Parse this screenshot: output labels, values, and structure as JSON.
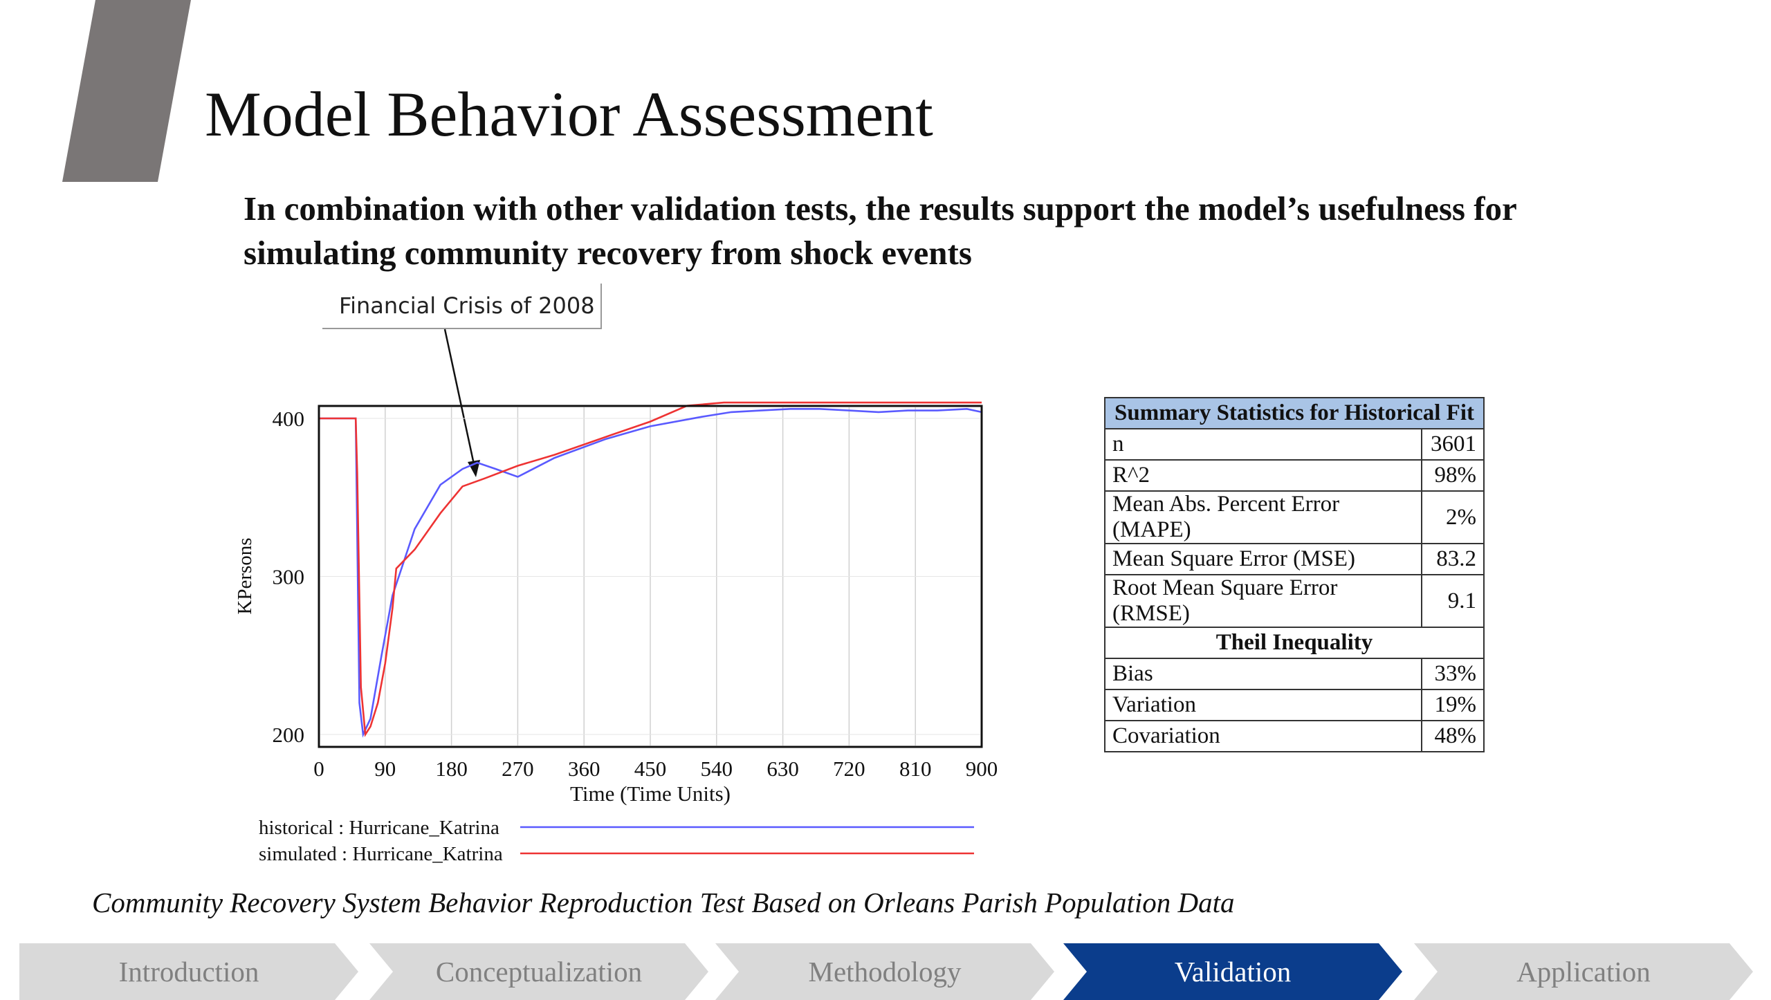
{
  "header": {
    "title": "Model Behavior Assessment",
    "subtitle": "In combination with other validation tests, the results support the model’s usefulness for simulating community recovery from shock events"
  },
  "annotation": {
    "text": "Financial Crisis of 2008"
  },
  "chart_data": {
    "type": "line",
    "xlabel": "Time (Time Units)",
    "ylabel": "KPersons",
    "xlim": [
      0,
      900
    ],
    "ylim": [
      200,
      400
    ],
    "xticks": [
      0,
      90,
      180,
      270,
      360,
      450,
      540,
      630,
      720,
      810,
      900
    ],
    "yticks": [
      200,
      300,
      400
    ],
    "grid": "vertical",
    "legend_position": "bottom",
    "series": [
      {
        "name": "historical : Hurricane_Katrina",
        "color": "#5a5aff",
        "x": [
          0,
          50,
          55,
          60,
          70,
          85,
          100,
          130,
          165,
          195,
          215,
          240,
          270,
          320,
          390,
          450,
          520,
          560,
          600,
          640,
          680,
          720,
          760,
          800,
          840,
          880,
          900
        ],
        "y": [
          400,
          400,
          220,
          200,
          210,
          250,
          288,
          330,
          358,
          368,
          372,
          368,
          363,
          375,
          387,
          395,
          401,
          404,
          405,
          406,
          406,
          405,
          404,
          405,
          405,
          406,
          404
        ]
      },
      {
        "name": "simulated : Hurricane_Katrina",
        "color": "#ee3333",
        "x": [
          0,
          50,
          52,
          57,
          63,
          70,
          80,
          90,
          100,
          105,
          130,
          165,
          195,
          225,
          270,
          320,
          400,
          450,
          500,
          550,
          900
        ],
        "y": [
          400,
          400,
          365,
          230,
          200,
          205,
          220,
          245,
          280,
          305,
          317,
          340,
          357,
          362,
          370,
          377,
          390,
          398,
          408,
          410,
          410
        ]
      }
    ]
  },
  "stats_table": {
    "header": "Summary Statistics for Historical Fit",
    "rows": [
      {
        "label": "n",
        "value": "3601"
      },
      {
        "label": "R^2",
        "value": "98%"
      },
      {
        "label": "Mean Abs. Percent Error (MAPE)",
        "value": "2%"
      },
      {
        "label": "Mean Square Error (MSE)",
        "value": "83.2"
      },
      {
        "label": "Root Mean Square Error (RMSE)",
        "value": "9.1"
      }
    ],
    "section": "Theil Inequality",
    "theil_rows": [
      {
        "label": "Bias",
        "value": "33%"
      },
      {
        "label": "Variation",
        "value": "19%"
      },
      {
        "label": "Covariation",
        "value": "48%"
      }
    ]
  },
  "caption": "Community Recovery System Behavior Reproduction Test Based on Orleans Parish Population Data",
  "nav": {
    "active": "Validation",
    "steps": [
      "Introduction",
      "Conceptualization",
      "Methodology",
      "Validation",
      "Application"
    ],
    "colors": {
      "inactive": "#d9d9d9",
      "inactive_text": "#808080",
      "active": "#0b3d8c",
      "active_text": "#ffffff"
    }
  },
  "theme": {
    "accent_shape": "#7a7676"
  }
}
